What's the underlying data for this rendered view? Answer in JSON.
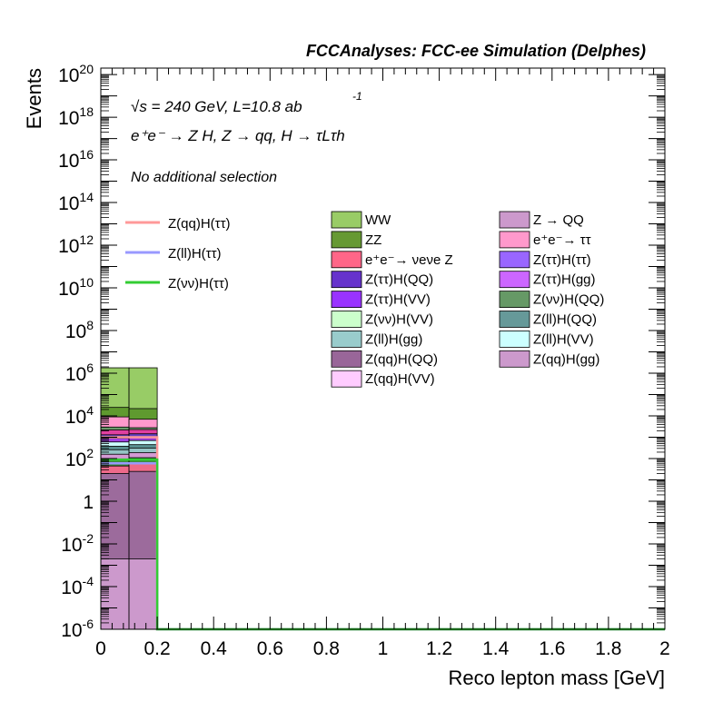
{
  "header": "FCCAnalyses: FCC-ee Simulation (Delphes)",
  "annotations": {
    "energy": "√s = 240 GeV, L=10.8 ab",
    "lumi_exponent": "-1",
    "process": "e⁺e⁻ → Z H, Z → qq, H → τLτh",
    "selection": "No additional selection"
  },
  "chart_data": {
    "type": "bar",
    "xlabel": "Reco lepton mass [GeV]",
    "ylabel": "Events",
    "xlim": [
      0,
      2
    ],
    "ylim": [
      1e-06,
      2e+20
    ],
    "yscale": "log",
    "x_ticks": [
      "0",
      "0.2",
      "0.4",
      "0.6",
      "0.8",
      "1",
      "1.2",
      "1.4",
      "1.6",
      "1.8",
      "2"
    ],
    "y_ticks": [
      {
        "mant": "10",
        "exp": "20",
        "v": 1e+20
      },
      {
        "mant": "10",
        "exp": "18",
        "v": 1e+18
      },
      {
        "mant": "10",
        "exp": "16",
        "v": 1e+16
      },
      {
        "mant": "10",
        "exp": "14",
        "v": 100000000000000.0
      },
      {
        "mant": "10",
        "exp": "12",
        "v": 1000000000000.0
      },
      {
        "mant": "10",
        "exp": "10",
        "v": 10000000000.0
      },
      {
        "mant": "10",
        "exp": "8",
        "v": 100000000.0
      },
      {
        "mant": "10",
        "exp": "6",
        "v": 1000000.0
      },
      {
        "mant": "10",
        "exp": "4",
        "v": 10000.0
      },
      {
        "mant": "10",
        "exp": "2",
        "v": 100.0
      },
      {
        "mant": "1",
        "exp": "",
        "v": 1
      },
      {
        "mant": "10",
        "exp": "-2",
        "v": 0.01
      },
      {
        "mant": "10",
        "exp": "-4",
        "v": 0.0001
      },
      {
        "mant": "10",
        "exp": "-6",
        "v": 1e-06
      }
    ],
    "bins": [
      [
        0,
        0.1
      ],
      [
        0.1,
        0.2
      ]
    ],
    "stack_levels": [
      {
        "color": "#cc99cc",
        "values": [
          0.002,
          0.002
        ]
      },
      {
        "color": "#9c6b9c",
        "values": [
          20,
          25
        ]
      },
      {
        "color": "#ee6a8a",
        "values": [
          45,
          60
        ]
      },
      {
        "color": "#3f8a3f",
        "values": [
          90,
          110
        ]
      },
      {
        "color": "#d39ad3",
        "values": [
          160,
          190
        ]
      },
      {
        "color": "#95c5c5",
        "values": [
          260,
          310
        ]
      },
      {
        "color": "#5a9090",
        "values": [
          380,
          450
        ]
      },
      {
        "color": "#ccffff",
        "values": [
          600,
          700
        ]
      },
      {
        "color": "#a040e0",
        "values": [
          900,
          1000
        ]
      },
      {
        "color": "#6040c0",
        "values": [
          1300,
          1450
        ]
      },
      {
        "color": "#e040a0",
        "values": [
          2200,
          2300
        ]
      },
      {
        "color": "#6a9a6a",
        "values": [
          3000,
          2800
        ]
      },
      {
        "color": "#ff99cc",
        "values": [
          9000,
          7000
        ]
      },
      {
        "color": "#5f9a2f",
        "values": [
          25000,
          22000
        ]
      },
      {
        "color": "#98cc66",
        "values": [
          1800000,
          1800000
        ]
      }
    ],
    "lines": [
      {
        "name": "Z(qq)H(ττ)",
        "color": "#ff9999",
        "values": [
          1000,
          1000
        ]
      },
      {
        "name": "Z(ll)H(ττ)",
        "color": "#9999ff",
        "values": [
          60,
          60
        ]
      },
      {
        "name": "Z(νν)H(ττ)",
        "color": "#33cc33",
        "values": [
          90,
          90
        ]
      }
    ],
    "legend_left": [
      {
        "name": "Z(qq)H(ττ)",
        "color": "#ff9999"
      },
      {
        "name": "Z(ll)H(ττ)",
        "color": "#9999ff"
      },
      {
        "name": "Z(νν)H(ττ)",
        "color": "#33cc33"
      }
    ],
    "legend_col1": [
      {
        "name": "WW",
        "color": "#99cc66"
      },
      {
        "name": "ZZ",
        "color": "#669933"
      },
      {
        "name": "e⁺e⁻→ νeνe Z",
        "color": "#ff6688"
      },
      {
        "name": "Z(ττ)H(QQ)",
        "color": "#6633cc"
      },
      {
        "name": "Z(ττ)H(VV)",
        "color": "#9933ff"
      },
      {
        "name": "Z(νν)H(VV)",
        "color": "#ccffcc"
      },
      {
        "name": "Z(ll)H(gg)",
        "color": "#99cccc"
      },
      {
        "name": "Z(qq)H(QQ)",
        "color": "#996699"
      },
      {
        "name": "Z(qq)H(VV)",
        "color": "#ffccff"
      }
    ],
    "legend_col2": [
      {
        "name": "Z → QQ",
        "color": "#cc99cc"
      },
      {
        "name": "e⁺e⁻→ ττ",
        "color": "#ff99cc"
      },
      {
        "name": "Z(ττ)H(ττ)",
        "color": "#9966ff"
      },
      {
        "name": "Z(ττ)H(gg)",
        "color": "#cc66ff"
      },
      {
        "name": "Z(νν)H(QQ)",
        "color": "#669966"
      },
      {
        "name": "Z(ll)H(QQ)",
        "color": "#669999"
      },
      {
        "name": "Z(ll)H(VV)",
        "color": "#ccffff"
      },
      {
        "name": "Z(qq)H(gg)",
        "color": "#cc99cc"
      }
    ]
  }
}
